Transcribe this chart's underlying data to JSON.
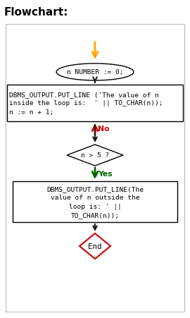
{
  "title": "Flowchart:",
  "outer_bg": "#ffffff",
  "inner_bg": "#ffffff",
  "box_border": "#000000",
  "end_border": "#cc0000",
  "arrow_orange": "#FFA500",
  "arrow_black": "#1a1a1a",
  "arrow_red": "#cc0000",
  "arrow_green": "#006400",
  "ellipse_text": "n NUMBER := 0;",
  "rect1_line1": "DBMS_OUTPUT.PUT_LINE ('The value of n",
  "rect1_line2": "inside the loop is:  ' || TO_CHAR(n));",
  "rect1_line3": "n := n + 1;",
  "diamond_text": "n > 5 ?",
  "rect2_line1": "DBMS_OUTPUT.PUT_LINE(The",
  "rect2_line2": "value of n outside the",
  "rect2_line3": "loop is: ' ||",
  "rect2_line4": "TO_CHAR(n));",
  "end_text": "End",
  "no_label": "No",
  "yes_label": "Yes",
  "font_size": 6.8,
  "title_font_size": 11
}
